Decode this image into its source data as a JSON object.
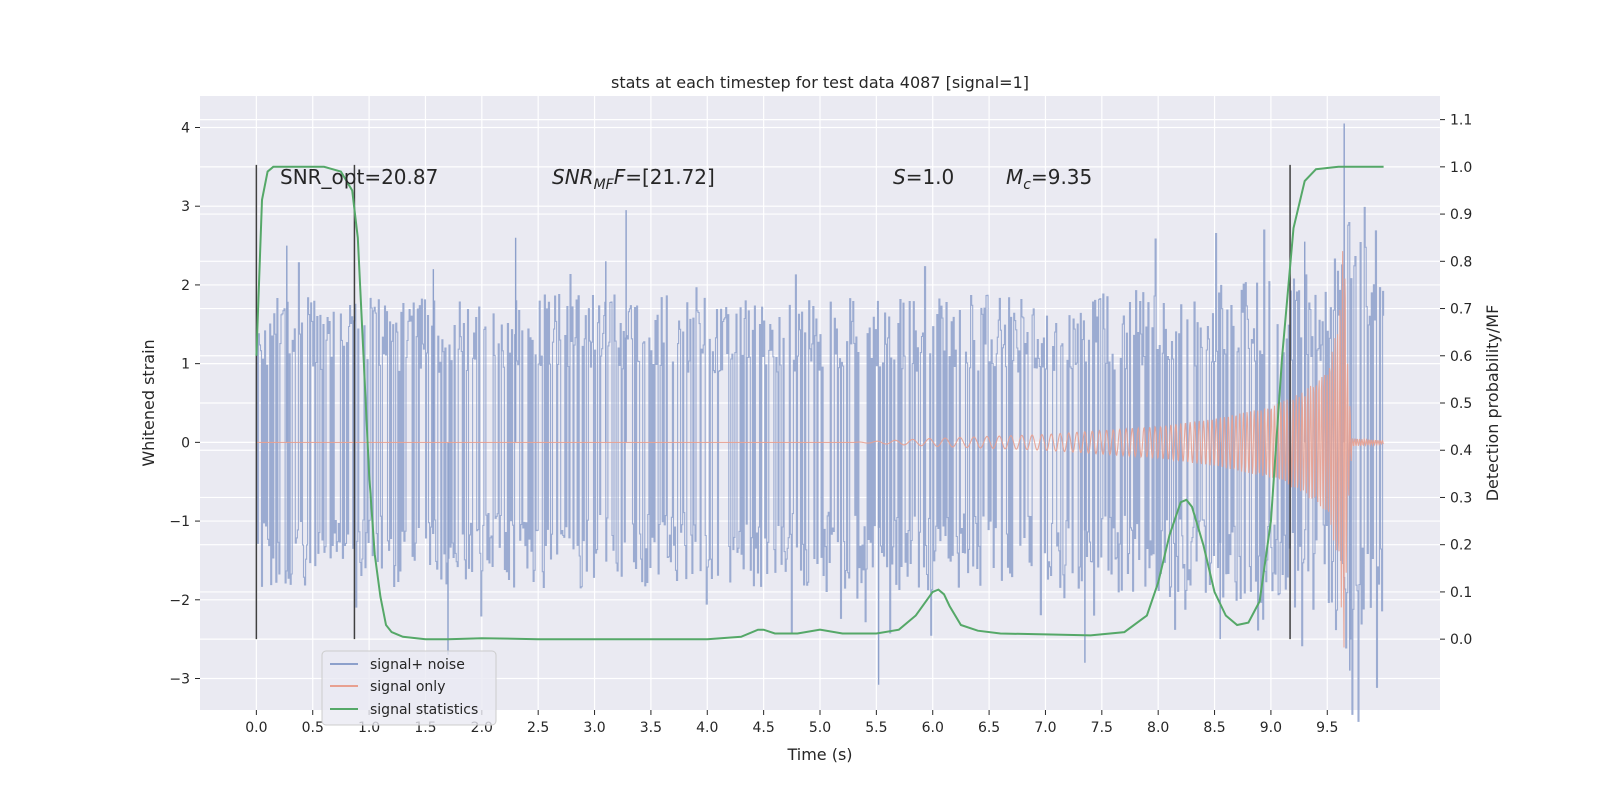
{
  "chart_data": {
    "type": "line",
    "title": "stats at each timestep for test data 4087 [signal=1]",
    "xlabel": "Time (s)",
    "ylabel": "Whitened strain",
    "ylabel_right": "Detection probability/MF",
    "xlim": [
      -0.5,
      10.5
    ],
    "ylim": [
      -3.4,
      4.4
    ],
    "ylim_right": [
      -0.15,
      1.15
    ],
    "xticks": [
      "0.0",
      "0.5",
      "1.0",
      "1.5",
      "2.0",
      "2.5",
      "3.0",
      "3.5",
      "4.0",
      "4.5",
      "5.0",
      "5.5",
      "6.0",
      "6.5",
      "7.0",
      "7.5",
      "8.0",
      "8.5",
      "9.0",
      "9.5"
    ],
    "yticks": [
      "−3",
      "−2",
      "−1",
      "0",
      "1",
      "2",
      "3",
      "4"
    ],
    "yticks_right": [
      "0.0",
      "0.1",
      "0.2",
      "0.3",
      "0.4",
      "0.5",
      "0.6",
      "0.7",
      "0.8",
      "0.9",
      "1.0",
      "1.1"
    ],
    "grid": true,
    "legend_position": "lower-left",
    "annotations": {
      "snr_opt": "SNR_opt=20.87",
      "snr_mf_base": "SNR",
      "snr_mf_sub": "MF",
      "snr_mf_rest": "=[21.72]",
      "s_label": "S",
      "s_rest": "=1.0",
      "mc_base": "M",
      "mc_sub": "c",
      "mc_rest": "=9.35"
    },
    "series": [
      {
        "name": "signal+ noise",
        "color": "#8da0cb",
        "envelope": {
          "x": [
            0.0,
            1.0,
            2.0,
            3.0,
            4.0,
            5.0,
            6.0,
            7.0,
            8.0,
            9.0,
            9.5,
            9.65,
            10.0
          ],
          "upper": [
            1.6,
            1.6,
            1.6,
            1.65,
            1.6,
            1.6,
            1.65,
            1.6,
            1.7,
            1.8,
            1.9,
            2.5,
            1.9
          ],
          "lower": [
            -1.6,
            -1.6,
            -1.6,
            -1.65,
            -1.6,
            -1.6,
            -1.65,
            -1.6,
            -1.7,
            -1.8,
            -1.9,
            -2.5,
            -1.9
          ]
        },
        "peaks": [
          {
            "x": 0.27,
            "y": 2.5
          },
          {
            "x": 1.57,
            "y": 2.2
          },
          {
            "x": 2.3,
            "y": 2.6
          },
          {
            "x": 3.28,
            "y": 2.95
          },
          {
            "x": 3.1,
            "y": 2.3
          },
          {
            "x": 5.52,
            "y": -3.08
          },
          {
            "x": 7.35,
            "y": -2.8
          },
          {
            "x": 9.65,
            "y": 4.05
          },
          {
            "x": 9.7,
            "y": -2.9
          },
          {
            "x": 1.7,
            "y": -2.7
          },
          {
            "x": 8.55,
            "y": -2.5
          },
          {
            "x": 9.3,
            "y": 2.55
          }
        ]
      },
      {
        "name": "signal only",
        "color": "#e8a090",
        "envelope": {
          "x": [
            5.3,
            6.0,
            7.0,
            8.0,
            8.5,
            9.0,
            9.3,
            9.5,
            9.6,
            9.65,
            9.68,
            9.72,
            10.0
          ],
          "amp": [
            0.0,
            0.05,
            0.1,
            0.2,
            0.3,
            0.45,
            0.65,
            0.95,
            1.5,
            2.8,
            1.0,
            0.05,
            0.02
          ]
        }
      },
      {
        "name": "signal statistics",
        "color": "#55a868",
        "x": [
          0.0,
          0.05,
          0.1,
          0.15,
          0.2,
          0.4,
          0.6,
          0.75,
          0.85,
          0.9,
          0.95,
          1.0,
          1.05,
          1.1,
          1.15,
          1.2,
          1.3,
          1.5,
          1.7,
          2.0,
          2.5,
          3.0,
          3.5,
          4.0,
          4.3,
          4.45,
          4.5,
          4.6,
          4.8,
          5.0,
          5.2,
          5.5,
          5.7,
          5.85,
          6.0,
          6.05,
          6.1,
          6.15,
          6.25,
          6.4,
          6.6,
          7.0,
          7.4,
          7.7,
          7.9,
          8.0,
          8.1,
          8.2,
          8.25,
          8.3,
          8.4,
          8.5,
          8.6,
          8.7,
          8.8,
          8.9,
          9.0,
          9.1,
          9.2,
          9.3,
          9.4,
          9.6,
          10.0
        ],
        "values": [
          0.6,
          0.93,
          0.99,
          1.0,
          1.0,
          1.0,
          1.0,
          0.99,
          0.95,
          0.85,
          0.6,
          0.35,
          0.18,
          0.09,
          0.03,
          0.015,
          0.005,
          0.0,
          0.0,
          0.002,
          0.0,
          0.0,
          0.0,
          0.0,
          0.005,
          0.02,
          0.02,
          0.012,
          0.012,
          0.02,
          0.012,
          0.012,
          0.02,
          0.05,
          0.1,
          0.105,
          0.095,
          0.07,
          0.03,
          0.018,
          0.012,
          0.01,
          0.008,
          0.015,
          0.05,
          0.12,
          0.22,
          0.29,
          0.295,
          0.28,
          0.2,
          0.1,
          0.05,
          0.03,
          0.035,
          0.08,
          0.25,
          0.6,
          0.87,
          0.97,
          0.995,
          1.0,
          1.0
        ]
      }
    ],
    "vlines": {
      "color": "#404040",
      "x": [
        0.0,
        0.87,
        9.17
      ],
      "y_right_range": [
        0.0,
        1.0
      ]
    }
  }
}
